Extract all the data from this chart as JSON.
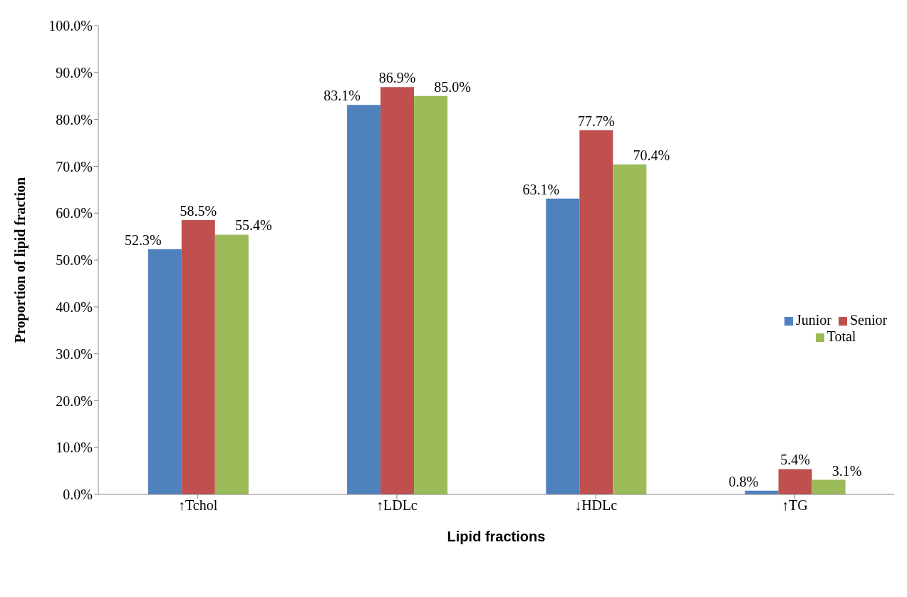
{
  "chart_data": {
    "type": "bar",
    "xlabel": "Lipid fractions",
    "ylabel": "Proportion of lipid fraction",
    "categories": [
      "↑Tchol",
      "↑LDLc",
      "↓HDLc",
      "↑TG"
    ],
    "series": [
      {
        "name": "Junior",
        "color": "#4f81bd",
        "values": [
          52.3,
          83.1,
          63.1,
          0.8
        ],
        "value_labels": [
          "52.3%",
          "83.1%",
          "63.1%",
          "0.8%"
        ]
      },
      {
        "name": "Senior",
        "color": "#c0504d",
        "values": [
          58.5,
          86.9,
          77.7,
          5.4
        ],
        "value_labels": [
          "58.5%",
          "86.9%",
          "77.7%",
          "5.4%"
        ]
      },
      {
        "name": "Total",
        "color": "#9bbb59",
        "values": [
          55.4,
          85.0,
          70.4,
          3.1
        ],
        "value_labels": [
          "55.4%",
          "85.0%",
          "70.4%",
          "3.1%"
        ]
      }
    ],
    "ylim": [
      0,
      100
    ],
    "yticks": [
      {
        "value": 0,
        "label": "0.0%"
      },
      {
        "value": 10,
        "label": "10.0%"
      },
      {
        "value": 20,
        "label": "20.0%"
      },
      {
        "value": 30,
        "label": "30.0%"
      },
      {
        "value": 40,
        "label": "40.0%"
      },
      {
        "value": 50,
        "label": "50.0%"
      },
      {
        "value": 60,
        "label": "60.0%"
      },
      {
        "value": 70,
        "label": "70.0%"
      },
      {
        "value": 80,
        "label": "80.0%"
      },
      {
        "value": 90,
        "label": "90.0%"
      },
      {
        "value": 100,
        "label": "100.0%"
      }
    ],
    "grid": false,
    "legend": "right"
  }
}
